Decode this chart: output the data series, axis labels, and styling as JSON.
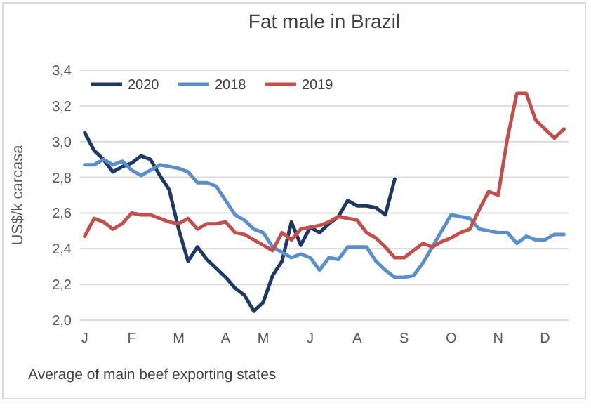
{
  "chart_data": {
    "type": "line",
    "title": "Fat male in Brazil",
    "ylabel": "US$/k carcasa",
    "annotations": [
      "Average of main beef exporting states"
    ],
    "categories": [
      "J",
      null,
      null,
      null,
      null,
      "F",
      null,
      null,
      null,
      null,
      "M",
      null,
      null,
      null,
      null,
      "A",
      null,
      null,
      null,
      "M",
      null,
      null,
      null,
      null,
      "J",
      null,
      null,
      null,
      null,
      "A",
      null,
      null,
      null,
      null,
      "S",
      null,
      null,
      null,
      null,
      "O",
      null,
      null,
      null,
      null,
      "N",
      null,
      null,
      null,
      null,
      "D",
      null,
      null
    ],
    "ylim": [
      2.0,
      3.4
    ],
    "yticks": [
      {
        "value": 2.0,
        "label": "2,0"
      },
      {
        "value": 2.2,
        "label": "2,2"
      },
      {
        "value": 2.4,
        "label": "2,4"
      },
      {
        "value": 2.6,
        "label": "2,6"
      },
      {
        "value": 2.8,
        "label": "2,8"
      },
      {
        "value": 3.0,
        "label": "3,0"
      },
      {
        "value": 3.2,
        "label": "3,2"
      },
      {
        "value": 3.4,
        "label": "3,4"
      }
    ],
    "grid": "y",
    "legend": "top left",
    "line_style": "solid",
    "marker": "none",
    "series": [
      {
        "name": "2020",
        "color": "#1f3864",
        "values": [
          3.05,
          2.95,
          2.9,
          2.83,
          2.86,
          2.88,
          2.92,
          2.9,
          2.81,
          2.73,
          2.51,
          2.33,
          2.41,
          2.34,
          2.29,
          2.24,
          2.18,
          2.14,
          2.05,
          2.1,
          2.25,
          2.33,
          2.55,
          2.42,
          2.52,
          2.49,
          2.54,
          2.58,
          2.67,
          2.64,
          2.64,
          2.63,
          2.59,
          2.79,
          null,
          null,
          null,
          null,
          null,
          null,
          null,
          null,
          null,
          null,
          null,
          null,
          null,
          null,
          null,
          null,
          null,
          null
        ]
      },
      {
        "name": "2018",
        "color": "#5b8fc9",
        "values": [
          2.87,
          2.87,
          2.9,
          2.87,
          2.89,
          2.84,
          2.81,
          2.84,
          2.87,
          2.86,
          2.85,
          2.83,
          2.77,
          2.77,
          2.75,
          2.67,
          2.59,
          2.56,
          2.51,
          2.49,
          2.41,
          2.38,
          2.35,
          2.37,
          2.35,
          2.28,
          2.35,
          2.34,
          2.41,
          2.41,
          2.41,
          2.33,
          2.28,
          2.24,
          2.24,
          2.25,
          2.32,
          2.41,
          2.5,
          2.59,
          2.58,
          2.57,
          2.51,
          2.5,
          2.49,
          2.49,
          2.43,
          2.47,
          2.45,
          2.45,
          2.48,
          2.48
        ]
      },
      {
        "name": "2019",
        "color": "#c0504d",
        "values": [
          2.47,
          2.57,
          2.55,
          2.51,
          2.54,
          2.6,
          2.59,
          2.59,
          2.57,
          2.55,
          2.54,
          2.57,
          2.51,
          2.54,
          2.54,
          2.55,
          2.49,
          2.48,
          2.45,
          2.42,
          2.39,
          2.49,
          2.45,
          2.51,
          2.52,
          2.53,
          2.55,
          2.58,
          2.57,
          2.56,
          2.49,
          2.46,
          2.41,
          2.35,
          2.35,
          2.39,
          2.43,
          2.41,
          2.44,
          2.46,
          2.49,
          2.51,
          2.62,
          2.72,
          2.7,
          3.02,
          3.27,
          3.27,
          3.12,
          3.07,
          3.02,
          3.07
        ]
      }
    ]
  }
}
